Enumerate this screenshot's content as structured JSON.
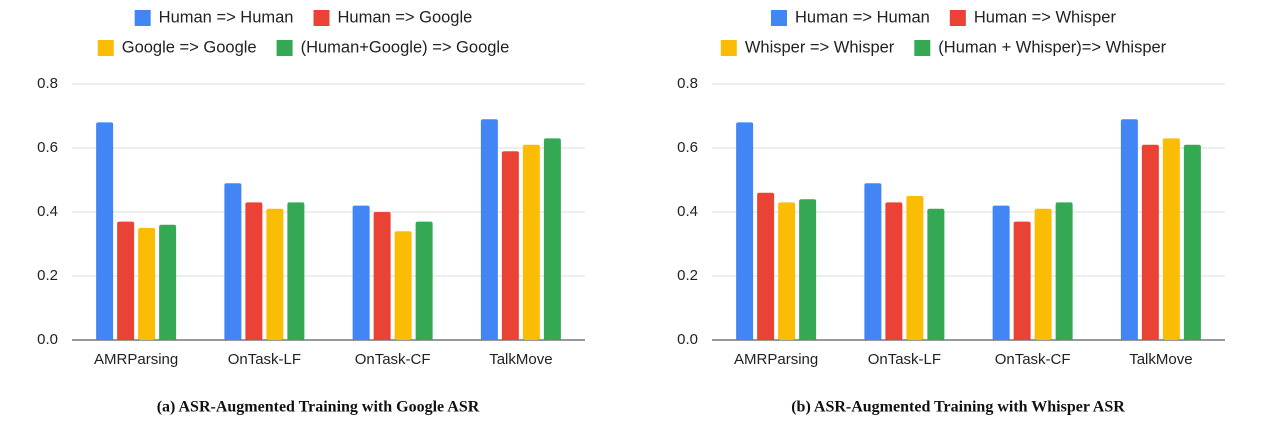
{
  "chart_data": [
    {
      "type": "bar",
      "caption": "(a) ASR-Augmented Training with Google ASR",
      "categories": [
        "AMRParsing",
        "OnTask-LF",
        "OnTask-CF",
        "TalkMove"
      ],
      "series": [
        {
          "name": "Human => Human",
          "color": "#4285f4",
          "values": [
            0.68,
            0.49,
            0.42,
            0.69
          ]
        },
        {
          "name": "Human => Google",
          "color": "#ea4335",
          "values": [
            0.37,
            0.43,
            0.4,
            0.59
          ]
        },
        {
          "name": "Google => Google",
          "color": "#fbbc04",
          "values": [
            0.35,
            0.41,
            0.34,
            0.61
          ]
        },
        {
          "name": "(Human+Google) => Google",
          "color": "#34a853",
          "values": [
            0.36,
            0.43,
            0.37,
            0.63
          ]
        }
      ],
      "ylim": [
        0,
        0.8
      ],
      "yticks": [
        {
          "value": 0,
          "label": "0.0"
        },
        0.2,
        0.4,
        0.6,
        0.8
      ],
      "grid": true,
      "legend": "top"
    },
    {
      "type": "bar",
      "caption": "(b) ASR-Augmented Training with Whisper ASR",
      "categories": [
        "AMRParsing",
        "OnTask-LF",
        "OnTask-CF",
        "TalkMove"
      ],
      "series": [
        {
          "name": "Human => Human",
          "color": "#4285f4",
          "values": [
            0.68,
            0.49,
            0.42,
            0.69
          ]
        },
        {
          "name": "Human => Whisper",
          "color": "#ea4335",
          "values": [
            0.46,
            0.43,
            0.37,
            0.61
          ]
        },
        {
          "name": "Whisper => Whisper",
          "color": "#fbbc04",
          "values": [
            0.43,
            0.45,
            0.41,
            0.63
          ]
        },
        {
          "name": "(Human + Whisper)=> Whisper",
          "color": "#34a853",
          "values": [
            0.44,
            0.41,
            0.43,
            0.61
          ]
        }
      ],
      "ylim": [
        0,
        0.8
      ],
      "yticks": [
        {
          "value": 0,
          "label": "0.0"
        },
        0.2,
        0.4,
        0.6,
        0.8
      ],
      "grid": true,
      "legend": "top"
    }
  ]
}
